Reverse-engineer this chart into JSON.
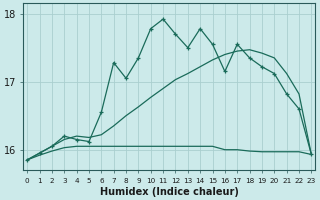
{
  "xlabel": "Humidex (Indice chaleur)",
  "x": [
    0,
    1,
    2,
    3,
    4,
    5,
    6,
    7,
    8,
    9,
    10,
    11,
    12,
    13,
    14,
    15,
    16,
    17,
    18,
    19,
    20,
    21,
    22,
    23
  ],
  "line_flat": [
    15.85,
    15.92,
    15.98,
    16.03,
    16.05,
    16.05,
    16.05,
    16.05,
    16.05,
    16.05,
    16.05,
    16.05,
    16.05,
    16.05,
    16.05,
    16.05,
    16.0,
    16.0,
    15.98,
    15.97,
    15.97,
    15.97,
    15.97,
    15.93
  ],
  "line_smooth": [
    15.85,
    15.95,
    16.05,
    16.15,
    16.2,
    16.18,
    16.22,
    16.35,
    16.5,
    16.63,
    16.77,
    16.9,
    17.03,
    17.12,
    17.22,
    17.32,
    17.4,
    17.45,
    17.47,
    17.42,
    17.35,
    17.12,
    16.82,
    15.93
  ],
  "line_jagged": [
    15.85,
    15.95,
    16.05,
    16.2,
    16.15,
    16.12,
    16.55,
    17.28,
    17.05,
    17.35,
    17.78,
    17.92,
    17.7,
    17.5,
    17.78,
    17.55,
    17.15,
    17.55,
    17.35,
    17.22,
    17.12,
    16.82,
    16.6,
    15.93
  ],
  "bg_color": "#cceaea",
  "grid_color": "#aacfcf",
  "line_color": "#1a6b5a",
  "yticks": [
    16,
    17,
    18
  ],
  "ylim": [
    15.7,
    18.15
  ],
  "xlim": [
    -0.3,
    23.3
  ]
}
